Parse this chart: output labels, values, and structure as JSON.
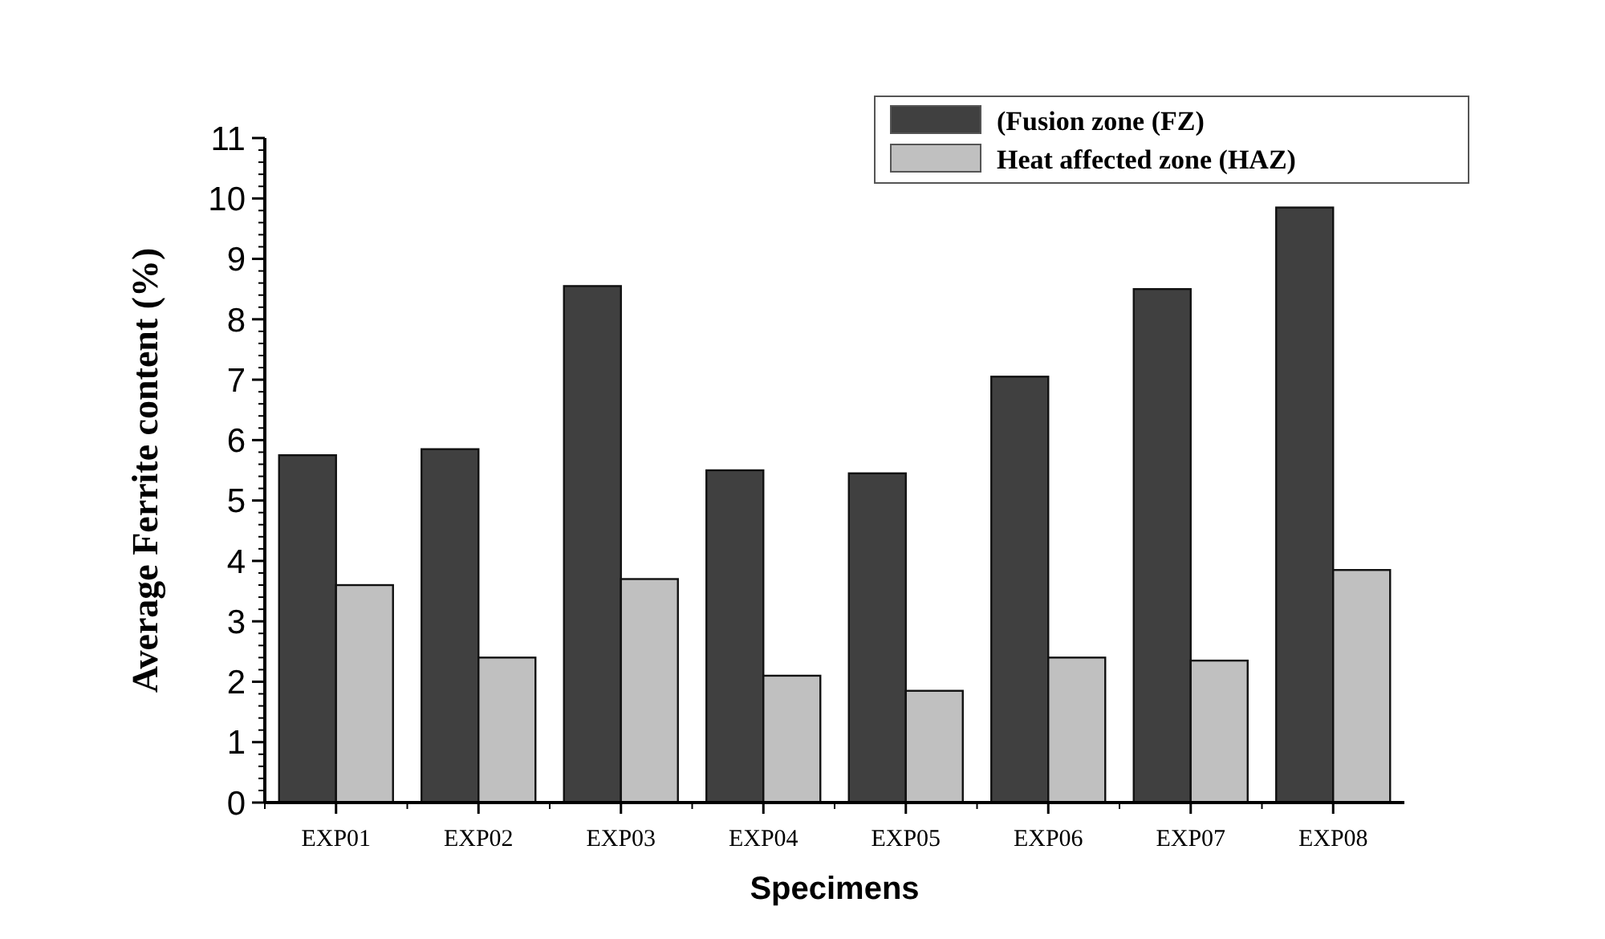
{
  "chart_data": {
    "type": "bar",
    "xlabel": "Specimens",
    "ylabel": "Average Ferrite content (%)",
    "categories": [
      "EXP01",
      "EXP02",
      "EXP03",
      "EXP04",
      "EXP05",
      "EXP06",
      "EXP07",
      "EXP08"
    ],
    "series": [
      {
        "name": "(Fusion zone (FZ)",
        "color": "#404040",
        "values": [
          5.75,
          5.85,
          8.55,
          5.5,
          5.45,
          7.05,
          8.5,
          9.85
        ]
      },
      {
        "name": "Heat affected zone (HAZ)",
        "color": "#c0c0c0",
        "values": [
          3.6,
          2.4,
          3.7,
          2.1,
          1.85,
          2.4,
          2.35,
          3.85
        ]
      }
    ],
    "ylim": [
      0,
      11
    ],
    "yticks": [
      0,
      1,
      2,
      3,
      4,
      5,
      6,
      7,
      8,
      9,
      10,
      11
    ],
    "grid": false,
    "legend": "top right"
  }
}
